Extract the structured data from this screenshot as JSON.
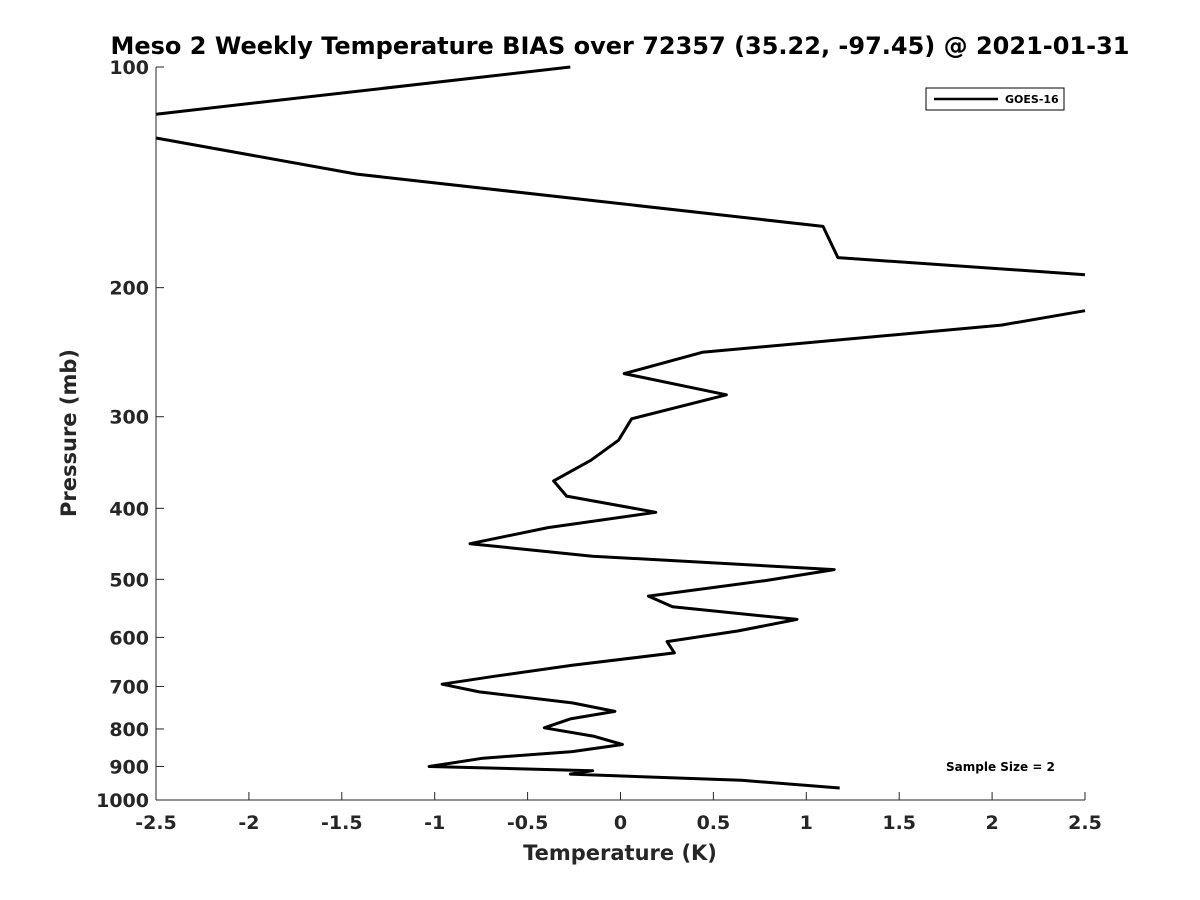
{
  "chart_data": {
    "type": "line",
    "title": "Meso 2 Weekly Temperature BIAS over 72357 (35.22, -97.45) @ 2021-01-31",
    "xlabel": "Temperature (K)",
    "ylabel": "Pressure (mb)",
    "xlim": [
      -2.5,
      2.5
    ],
    "ylim": [
      1000,
      100
    ],
    "y_scale": "log",
    "x_ticks": [
      -2.5,
      -2,
      -1.5,
      -1,
      -0.5,
      0,
      0.5,
      1,
      1.5,
      2,
      2.5
    ],
    "x_tick_labels": [
      "-2.5",
      "-2",
      "-1.5",
      "-1",
      "-0.5",
      "0",
      "0.5",
      "1",
      "1.5",
      "2",
      "2.5"
    ],
    "y_ticks": [
      100,
      200,
      300,
      400,
      500,
      600,
      700,
      800,
      900,
      1000
    ],
    "y_tick_labels": [
      "100",
      "200",
      "300",
      "400",
      "500",
      "600",
      "700",
      "800",
      "900",
      "1000"
    ],
    "grid": false,
    "legend_position": "top-right",
    "series": [
      {
        "name": "GOES-16",
        "color": "#000000",
        "segments": [
          {
            "x": [
              -0.27,
              -2.5
            ],
            "y": [
              100,
              116
            ]
          },
          {
            "x": [
              -2.5,
              -1.42,
              1.09,
              1.17,
              2.5
            ],
            "y": [
              125,
              140,
              165,
              182,
              192
            ]
          },
          {
            "x": [
              2.5,
              2.05,
              0.44,
              0.02,
              0.57,
              0.06,
              -0.01,
              -0.16,
              -0.36,
              -0.29,
              0.19,
              -0.39,
              -0.81,
              -0.15,
              1.15,
              0.78,
              0.15,
              0.28,
              0.95,
              0.63,
              0.25,
              0.29,
              -0.26,
              -0.68,
              -0.96,
              -0.76,
              -0.26,
              -0.03,
              -0.27,
              -0.41,
              -0.14,
              0.01,
              -0.26,
              -0.74,
              -1.03,
              -0.15,
              -0.27,
              0.65,
              1.18
            ],
            "y": [
              215,
              225,
              245,
              262,
              280,
              302,
              323,
              344,
              367,
              385,
              405,
              425,
              447,
              465,
              485,
              502,
              527,
              545,
              567,
              588,
              608,
              630,
              655,
              678,
              695,
              712,
              737,
              757,
              775,
              797,
              819,
              840,
              859,
              877,
              900,
              912,
              922,
              940,
              963
            ]
          }
        ]
      }
    ],
    "annotations": [
      "Sample Size = 2"
    ]
  }
}
